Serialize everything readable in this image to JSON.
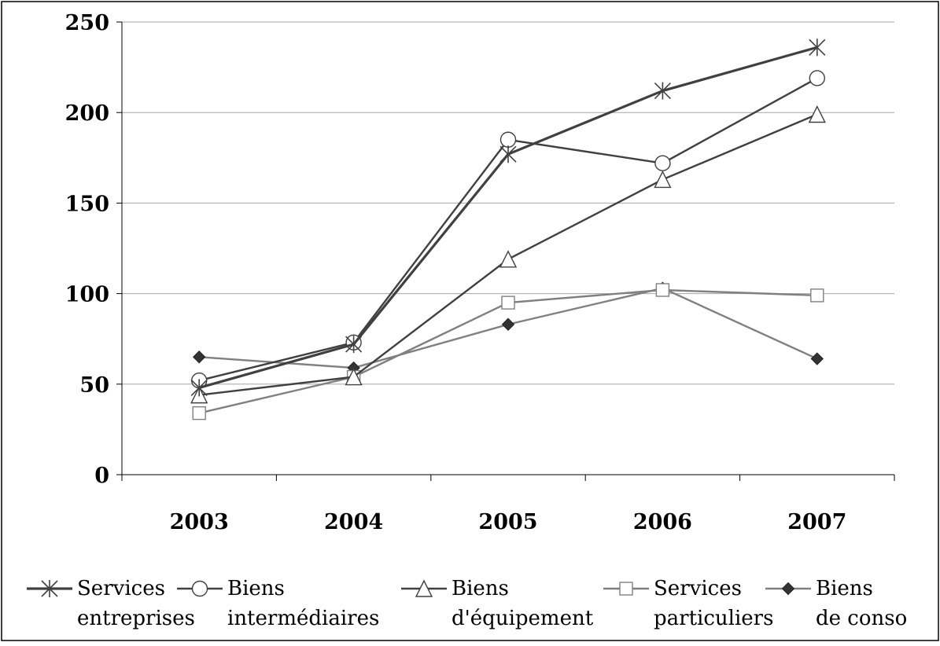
{
  "chart_data": {
    "type": "line",
    "title": "",
    "xlabel": "",
    "ylabel": "",
    "categories": [
      "2003",
      "2004",
      "2005",
      "2006",
      "2007"
    ],
    "ylim": [
      0,
      250
    ],
    "yticks": [
      0,
      50,
      100,
      150,
      200,
      250
    ],
    "grid": "horizontal",
    "legend_position": "bottom",
    "series": [
      {
        "name_line1": "Services",
        "name_line2": "entreprises",
        "marker": "asterisk",
        "color": "#404040",
        "values": [
          48,
          72,
          177,
          212,
          236
        ]
      },
      {
        "name_line1": "Biens",
        "name_line2": "intermédiaires",
        "marker": "circle",
        "color": "#404040",
        "values": [
          52,
          73,
          185,
          172,
          219
        ]
      },
      {
        "name_line1": "Biens",
        "name_line2": "d'équipement",
        "marker": "triangle",
        "color": "#404040",
        "values": [
          44,
          54,
          119,
          163,
          199
        ]
      },
      {
        "name_line1": "Services",
        "name_line2": "particuliers",
        "marker": "square",
        "color": "#808080",
        "values": [
          34,
          54,
          95,
          102,
          99
        ]
      },
      {
        "name_line1": "Biens",
        "name_line2": "de conso",
        "marker": "diamond",
        "color": "#808080",
        "values": [
          65,
          59,
          83,
          103,
          64
        ]
      }
    ]
  }
}
